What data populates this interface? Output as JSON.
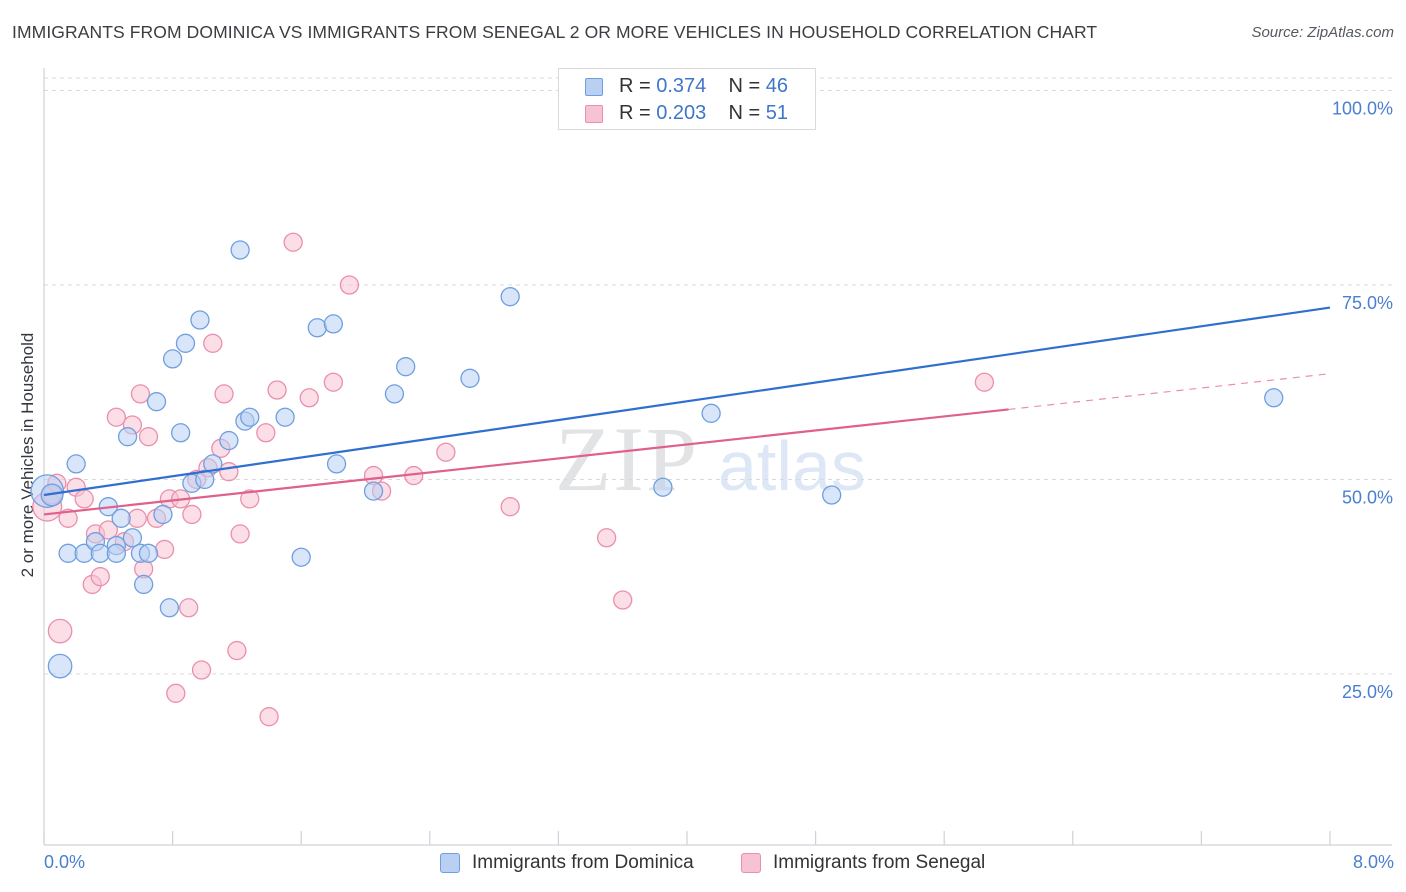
{
  "header": {
    "title": "IMMIGRANTS FROM DOMINICA VS IMMIGRANTS FROM SENEGAL 2 OR MORE VEHICLES IN HOUSEHOLD CORRELATION CHART",
    "source": "Source: ZipAtlas.com"
  },
  "watermark": {
    "zip": "ZIP",
    "atlas": "atlas"
  },
  "legend": {
    "r_label": "R =",
    "n_label": "N =",
    "dominica": {
      "r": "0.374",
      "n": "46"
    },
    "senegal": {
      "r": "0.203",
      "n": "51"
    }
  },
  "colors": {
    "dominica_fill": "#b9d0f2",
    "dominica_stroke": "#6f9fe0",
    "dominica_line": "#2f6fcf",
    "senegal_fill": "#f7c3d2",
    "senegal_stroke": "#ea8fae",
    "senegal_line": "#e0608c",
    "grid": "#d8dadd",
    "axis_label": "#4a7fd0"
  },
  "chart_data": {
    "type": "scatter",
    "title": "IMMIGRANTS FROM DOMINICA VS IMMIGRANTS FROM SENEGAL 2 OR MORE VEHICLES IN HOUSEHOLD CORRELATION CHART",
    "xlabel": "",
    "ylabel": "2 or more Vehicles in Household",
    "xlim": [
      0,
      8
    ],
    "ylim": [
      3,
      102
    ],
    "x_tick_labels": [
      "0.0%",
      "8.0%"
    ],
    "y_ticks": [
      25,
      50,
      75,
      100
    ],
    "y_tick_labels": [
      "25.0%",
      "50.0%",
      "75.0%",
      "100.0%"
    ],
    "grid": "horizontal dashed",
    "series": [
      {
        "name": "Immigrants from Dominica",
        "r": 0.374,
        "n": 46,
        "trend": {
          "x0": 0,
          "y0": 48.0,
          "x1": 8.0,
          "y1": 72.1
        },
        "points": [
          [
            0.02,
            48.5,
            18
          ],
          [
            0.05,
            48.0,
            12
          ],
          [
            0.1,
            26.0,
            13
          ],
          [
            0.2,
            52.0,
            10
          ],
          [
            0.15,
            40.5,
            10
          ],
          [
            0.25,
            40.5,
            10
          ],
          [
            0.32,
            42.0,
            10
          ],
          [
            0.35,
            40.5,
            10
          ],
          [
            0.4,
            46.5,
            10
          ],
          [
            0.45,
            41.5,
            10
          ],
          [
            0.45,
            40.5,
            10
          ],
          [
            0.48,
            45.0,
            10
          ],
          [
            0.52,
            55.5,
            10
          ],
          [
            0.55,
            42.5,
            10
          ],
          [
            0.6,
            40.5,
            10
          ],
          [
            0.62,
            36.5,
            10
          ],
          [
            0.65,
            40.5,
            10
          ],
          [
            0.7,
            60.0,
            10
          ],
          [
            0.74,
            45.5,
            10
          ],
          [
            0.78,
            33.5,
            10
          ],
          [
            0.8,
            65.5,
            10
          ],
          [
            0.85,
            56.0,
            10
          ],
          [
            0.88,
            67.5,
            10
          ],
          [
            0.92,
            49.5,
            10
          ],
          [
            0.97,
            70.5,
            10
          ],
          [
            1.0,
            50.0,
            10
          ],
          [
            1.05,
            52.0,
            10
          ],
          [
            1.15,
            55.0,
            10
          ],
          [
            1.22,
            79.5,
            10
          ],
          [
            1.25,
            57.5,
            10
          ],
          [
            1.28,
            58.0,
            10
          ],
          [
            1.5,
            58.0,
            10
          ],
          [
            1.6,
            40.0,
            10
          ],
          [
            1.7,
            69.5,
            10
          ],
          [
            1.8,
            70.0,
            10
          ],
          [
            1.82,
            52.0,
            10
          ],
          [
            2.05,
            48.5,
            10
          ],
          [
            2.18,
            61.0,
            10
          ],
          [
            2.25,
            64.5,
            10
          ],
          [
            2.65,
            63.0,
            10
          ],
          [
            2.9,
            73.5,
            10
          ],
          [
            3.85,
            49.0,
            10
          ],
          [
            4.15,
            58.5,
            10
          ],
          [
            4.9,
            48.0,
            10
          ],
          [
            7.65,
            60.5,
            10
          ]
        ]
      },
      {
        "name": "Immigrants from Senegal",
        "r": 0.203,
        "n": 51,
        "trend": {
          "x0": 0,
          "y0": 45.5,
          "x1": 6.0,
          "y1": 59.0,
          "dash_x0": 6.0,
          "dash_y0": 59.0,
          "dash_x1": 8.0,
          "dash_y1": 63.6
        },
        "points": [
          [
            0.02,
            46.5,
            16
          ],
          [
            0.05,
            48.0,
            10
          ],
          [
            0.08,
            49.5,
            10
          ],
          [
            0.1,
            30.5,
            13
          ],
          [
            0.15,
            45.0,
            10
          ],
          [
            0.2,
            49.0,
            10
          ],
          [
            0.25,
            47.5,
            10
          ],
          [
            0.3,
            36.5,
            10
          ],
          [
            0.32,
            43.0,
            10
          ],
          [
            0.35,
            37.5,
            10
          ],
          [
            0.4,
            43.5,
            10
          ],
          [
            0.45,
            58.0,
            10
          ],
          [
            0.5,
            42.0,
            10
          ],
          [
            0.55,
            57.0,
            10
          ],
          [
            0.58,
            45.0,
            10
          ],
          [
            0.6,
            61.0,
            10
          ],
          [
            0.62,
            38.5,
            10
          ],
          [
            0.65,
            55.5,
            10
          ],
          [
            0.7,
            45.0,
            10
          ],
          [
            0.75,
            41.0,
            10
          ],
          [
            0.78,
            47.5,
            10
          ],
          [
            0.82,
            22.5,
            10
          ],
          [
            0.85,
            47.5,
            10
          ],
          [
            0.9,
            33.5,
            10
          ],
          [
            0.92,
            45.5,
            10
          ],
          [
            0.95,
            50.0,
            10
          ],
          [
            0.98,
            25.5,
            10
          ],
          [
            1.02,
            51.5,
            10
          ],
          [
            1.05,
            67.5,
            10
          ],
          [
            1.1,
            54.0,
            10
          ],
          [
            1.12,
            61.0,
            10
          ],
          [
            1.15,
            51.0,
            10
          ],
          [
            1.2,
            28.0,
            10
          ],
          [
            1.22,
            43.0,
            10
          ],
          [
            1.28,
            47.5,
            10
          ],
          [
            1.38,
            56.0,
            10
          ],
          [
            1.4,
            19.5,
            10
          ],
          [
            1.45,
            61.5,
            10
          ],
          [
            1.55,
            80.5,
            10
          ],
          [
            1.65,
            60.5,
            10
          ],
          [
            1.8,
            62.5,
            10
          ],
          [
            1.9,
            75.0,
            10
          ],
          [
            2.05,
            50.5,
            10
          ],
          [
            2.1,
            48.5,
            10
          ],
          [
            2.3,
            50.5,
            10
          ],
          [
            2.5,
            53.5,
            10
          ],
          [
            2.9,
            46.5,
            10
          ],
          [
            3.5,
            42.5,
            10
          ],
          [
            3.6,
            34.5,
            10
          ],
          [
            5.85,
            62.5,
            10
          ]
        ]
      }
    ]
  }
}
